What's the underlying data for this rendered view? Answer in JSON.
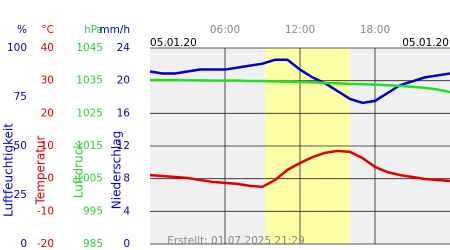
{
  "chart_data": {
    "type": "line",
    "start_label": "05.01.20",
    "end_label": "05.01.20",
    "footer": "Erstellt: 01.07.2025 21:29",
    "x": [
      0,
      1,
      2,
      3,
      4,
      5,
      6,
      7,
      8,
      9,
      10,
      11,
      12,
      13,
      14,
      15,
      16,
      17,
      18,
      19,
      20,
      21,
      22,
      23,
      24
    ],
    "xlim": [
      0,
      24
    ],
    "xticks": [
      {
        "value": 6,
        "label": "06:00"
      },
      {
        "value": 12,
        "label": "12:00"
      },
      {
        "value": 18,
        "label": "18:00"
      }
    ],
    "highlight": [
      9.2,
      16
    ],
    "grid_axis": 3,
    "axes": [
      {
        "unit": "%",
        "title": "Luftfeuchtigkeit",
        "color": "#0000cc",
        "ylim": [
          0,
          100
        ],
        "yticks": [
          100,
          75,
          50,
          25,
          0
        ]
      },
      {
        "unit": "°C",
        "title": "Temperatur",
        "color": "#dd0000",
        "ylim": [
          -20,
          40
        ],
        "yticks": [
          40,
          30,
          20,
          10,
          0,
          -10,
          -20
        ]
      },
      {
        "unit": "hPa",
        "title": "Luftdruck",
        "color": "#33cc33",
        "ylim": [
          985,
          1045
        ],
        "yticks": [
          1045,
          1035,
          1025,
          1015,
          1005,
          995,
          985
        ]
      },
      {
        "unit": "mm/h",
        "title": "Niederschlag",
        "color": "#0000cc",
        "ylim": [
          0,
          24
        ],
        "yticks": [
          24,
          20,
          16,
          12,
          8,
          4,
          0
        ]
      }
    ],
    "series": [
      {
        "axis": 0,
        "color": "#0000cc",
        "values": [
          88,
          87,
          87,
          88,
          89,
          89,
          89,
          90,
          91,
          92,
          94,
          94,
          89,
          85,
          82,
          78,
          74,
          72,
          73,
          77,
          81,
          83,
          85,
          86,
          87
        ]
      },
      {
        "axis": 2,
        "color": "#22dd22",
        "values": [
          1035.2,
          1035.2,
          1035.2,
          1035.1,
          1035.1,
          1035.0,
          1035.0,
          1035.0,
          1034.9,
          1034.9,
          1034.8,
          1034.7,
          1034.6,
          1034.5,
          1034.3,
          1034.2,
          1034.0,
          1033.9,
          1033.8,
          1033.6,
          1033.4,
          1033.1,
          1032.8,
          1032.3,
          1031.5
        ]
      },
      {
        "axis": 1,
        "color": "#dd0000",
        "values": [
          1.1,
          0.8,
          0.5,
          0.2,
          -0.4,
          -1.0,
          -1.3,
          -1.6,
          -2.2,
          -2.5,
          -0.4,
          2.7,
          4.8,
          6.6,
          7.9,
          8.5,
          8.2,
          6.3,
          3.6,
          2.0,
          1.1,
          0.5,
          -0.1,
          -0.4,
          -0.7
        ]
      }
    ]
  }
}
